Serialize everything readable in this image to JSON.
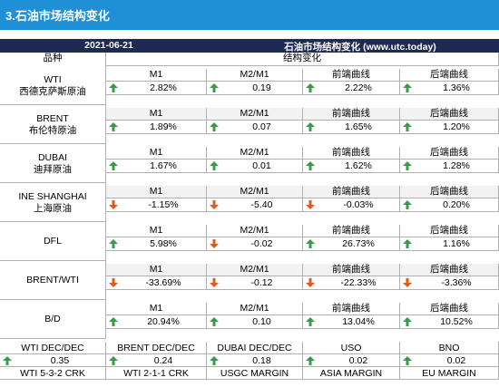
{
  "header": {
    "title": "3.石油市场结构变化"
  },
  "table_title": {
    "date": "2021-06-21",
    "name": "石油市场结构变化 (www.utc.today)"
  },
  "col_headers": {
    "variety": "品种",
    "structure": "结构变化"
  },
  "rows": [
    {
      "name_en": "WTI",
      "name_cn": "西德克萨斯原油",
      "labels": [
        "M1",
        "M2/M1",
        "前端曲线",
        "后端曲线"
      ],
      "values": [
        "2.82%",
        "0.19",
        "2.22%",
        "1.36%"
      ],
      "dirs": [
        "up",
        "up",
        "up",
        "up"
      ]
    },
    {
      "name_en": "BRENT",
      "name_cn": "布伦特原油",
      "labels": [
        "M1",
        "M2/M1",
        "前端曲线",
        "后端曲线"
      ],
      "values": [
        "1.89%",
        "0.07",
        "1.65%",
        "1.20%"
      ],
      "dirs": [
        "up",
        "up",
        "up",
        "up"
      ]
    },
    {
      "name_en": "DUBAI",
      "name_cn": "迪拜原油",
      "labels": [
        "M1",
        "M2/M1",
        "前端曲线",
        "后端曲线"
      ],
      "values": [
        "1.67%",
        "0.01",
        "1.62%",
        "1.28%"
      ],
      "dirs": [
        "up",
        "up",
        "up",
        "up"
      ]
    },
    {
      "name_en": "INE SHANGHAI",
      "name_cn": "上海原油",
      "labels": [
        "M1",
        "M2/M1",
        "前端曲线",
        "后端曲线"
      ],
      "values": [
        "-1.15%",
        "-5.40",
        "-0.03%",
        "0.20%"
      ],
      "dirs": [
        "down",
        "down",
        "down",
        "up"
      ]
    },
    {
      "name_en": "DFL",
      "name_cn": "",
      "labels": [
        "M1",
        "M2/M1",
        "前端曲线",
        "后端曲线"
      ],
      "values": [
        "5.98%",
        "-0.02",
        "26.73%",
        "1.16%"
      ],
      "dirs": [
        "up",
        "down",
        "up",
        "up"
      ]
    },
    {
      "name_en": "BRENT/WTI",
      "name_cn": "",
      "labels": [
        "M1",
        "M2/M1",
        "前端曲线",
        "后端曲线"
      ],
      "values": [
        "-33.69%",
        "-0.12",
        "-22.33%",
        "-3.36%"
      ],
      "dirs": [
        "down",
        "down",
        "down",
        "down"
      ]
    },
    {
      "name_en": "B/D",
      "name_cn": "",
      "labels": [
        "M1",
        "M2/M1",
        "前端曲线",
        "后端曲线"
      ],
      "values": [
        "20.94%",
        "0.10",
        "13.04%",
        "10.52%"
      ],
      "dirs": [
        "up",
        "up",
        "up",
        "up"
      ]
    }
  ],
  "spreads": {
    "labels": [
      "WTI DEC/DEC",
      "BRENT DEC/DEC",
      "DUBAI DEC/DEC",
      "USO",
      "BNO"
    ],
    "values": [
      "0.35",
      "0.24",
      "0.18",
      "0.02",
      "0.02"
    ],
    "dirs": [
      "up",
      "up",
      "up",
      "up",
      "up"
    ]
  },
  "cracks": {
    "labels": [
      "WTI 5-3-2 CRK",
      "WTI 2-1-1 CRK",
      "USGC MARGIN",
      "ASIA MARGIN",
      "EU MARGIN"
    ]
  },
  "colors": {
    "header_bg": "#1f8fd6",
    "title_bg": "#1e2a52",
    "up": "#3a9a4a",
    "down": "#e05a1e"
  }
}
